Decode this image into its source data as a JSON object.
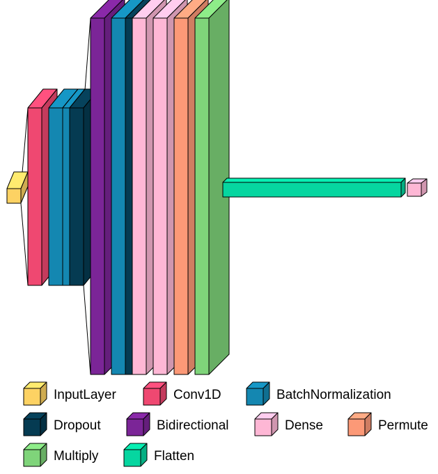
{
  "legend": [
    {
      "key": "input_layer",
      "label": "InputLayer",
      "color": "#FDD263"
    },
    {
      "key": "conv1d",
      "label": "Conv1D",
      "color": "#EF4871"
    },
    {
      "key": "batch_norm",
      "label": "BatchNormalization",
      "color": "#1487B1"
    },
    {
      "key": "dropout",
      "label": "Dropout",
      "color": "#053B52"
    },
    {
      "key": "bidirectional",
      "label": "Bidirectional",
      "color": "#7B2597"
    },
    {
      "key": "dense",
      "label": "Dense",
      "color": "#FEB7D5"
    },
    {
      "key": "permute",
      "label": "Permute",
      "color": "#FC9977"
    },
    {
      "key": "multiply",
      "label": "Multiply",
      "color": "#7FD47A"
    },
    {
      "key": "flatten",
      "label": "Flatten",
      "color": "#06D6A0"
    }
  ],
  "layers": [
    {
      "name": "input-layer",
      "type": "input_layer"
    },
    {
      "name": "conv1d-layer",
      "type": "conv1d"
    },
    {
      "name": "batch-norm-layer-1",
      "type": "batch_norm"
    },
    {
      "name": "batch-norm-layer-2",
      "type": "batch_norm"
    },
    {
      "name": "dropout-layer-1",
      "type": "dropout"
    },
    {
      "name": "bidirectional-layer",
      "type": "bidirectional"
    },
    {
      "name": "batch-norm-layer-3",
      "type": "batch_norm"
    },
    {
      "name": "dropout-layer-2",
      "type": "dropout"
    },
    {
      "name": "dense-layer-1",
      "type": "dense"
    },
    {
      "name": "permute-layer",
      "type": "permute"
    },
    {
      "name": "multiply-layer",
      "type": "multiply"
    },
    {
      "name": "flatten-layer",
      "type": "flatten"
    },
    {
      "name": "dense-layer-2",
      "type": "dense"
    }
  ]
}
